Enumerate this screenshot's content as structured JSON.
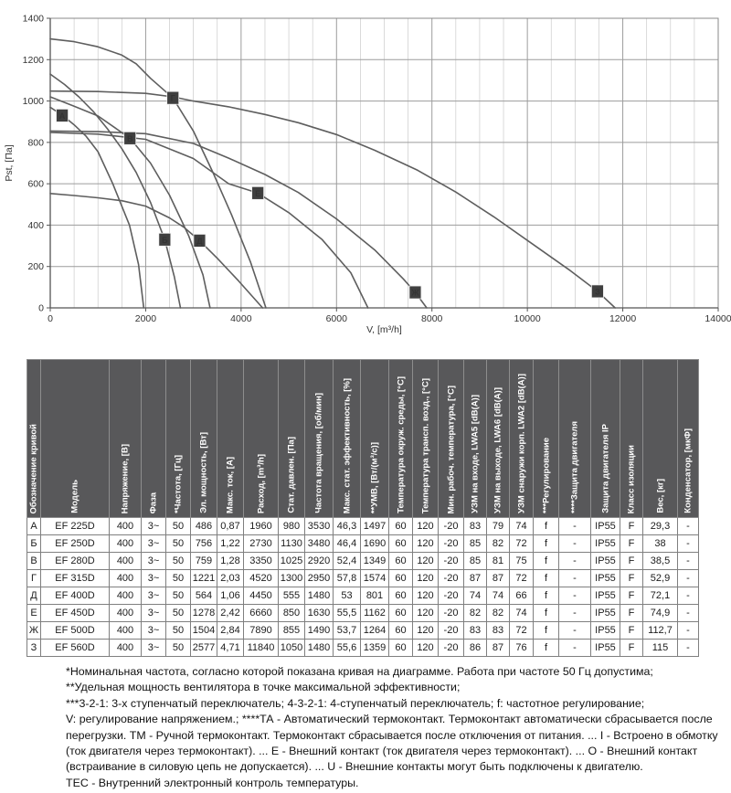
{
  "chart_data": {
    "type": "line",
    "title": "",
    "xlabel": "V, [m³/h]",
    "ylabel": "Pst, [Па]",
    "xlim": [
      0,
      14000
    ],
    "ylim": [
      0,
      1400
    ],
    "x_ticks": [
      0,
      2000,
      4000,
      6000,
      8000,
      10000,
      12000,
      14000
    ],
    "y_ticks": [
      0,
      200,
      400,
      600,
      800,
      1000,
      1200,
      1400
    ],
    "x_minor_step": 500,
    "grid": true,
    "legend_position": "markers-on-curves",
    "series": [
      {
        "name": "А",
        "model": "EF 225D",
        "marker_at": [
          250,
          930
        ],
        "points": [
          [
            0,
            970
          ],
          [
            250,
            932
          ],
          [
            500,
            885
          ],
          [
            750,
            830
          ],
          [
            1000,
            755
          ],
          [
            1310,
            600
          ],
          [
            1660,
            400
          ],
          [
            1850,
            210
          ],
          [
            1960,
            0
          ]
        ]
      },
      {
        "name": "Б",
        "model": "EF 250D",
        "marker_at": [
          2400,
          330
        ],
        "points": [
          [
            0,
            1130
          ],
          [
            300,
            1080
          ],
          [
            600,
            1020
          ],
          [
            900,
            950
          ],
          [
            1200,
            865
          ],
          [
            1500,
            770
          ],
          [
            1800,
            655
          ],
          [
            2100,
            510
          ],
          [
            2400,
            330
          ],
          [
            2600,
            150
          ],
          [
            2730,
            0
          ]
        ]
      },
      {
        "name": "В",
        "model": "EF 280D",
        "marker_at": [
          1670,
          820
        ],
        "points": [
          [
            0,
            1020
          ],
          [
            500,
            975
          ],
          [
            1000,
            928
          ],
          [
            1670,
            820
          ],
          [
            2100,
            700
          ],
          [
            2500,
            545
          ],
          [
            2900,
            350
          ],
          [
            3200,
            160
          ],
          [
            3350,
            0
          ]
        ]
      },
      {
        "name": "Г",
        "model": "EF 315D",
        "marker_at": [
          2570,
          1015
        ],
        "points": [
          [
            0,
            1300
          ],
          [
            500,
            1287
          ],
          [
            1000,
            1262
          ],
          [
            1500,
            1222
          ],
          [
            1800,
            1180
          ],
          [
            2100,
            1110
          ],
          [
            2570,
            1015
          ],
          [
            3000,
            855
          ],
          [
            3400,
            660
          ],
          [
            3800,
            450
          ],
          [
            4200,
            220
          ],
          [
            4520,
            0
          ]
        ]
      },
      {
        "name": "Д",
        "model": "EF 400D",
        "marker_at": [
          3130,
          325
        ],
        "points": [
          [
            0,
            553
          ],
          [
            500,
            543
          ],
          [
            1000,
            532
          ],
          [
            1500,
            518
          ],
          [
            2000,
            492
          ],
          [
            2500,
            435
          ],
          [
            2800,
            390
          ],
          [
            3130,
            325
          ],
          [
            3500,
            240
          ],
          [
            3950,
            130
          ],
          [
            4450,
            0
          ]
        ]
      },
      {
        "name": "Е",
        "model": "EF 450D",
        "marker_at": [
          4350,
          555
        ],
        "points": [
          [
            0,
            848
          ],
          [
            1000,
            840
          ],
          [
            2000,
            815
          ],
          [
            3000,
            722
          ],
          [
            3740,
            600
          ],
          [
            4350,
            555
          ],
          [
            5000,
            460
          ],
          [
            5700,
            330
          ],
          [
            6300,
            170
          ],
          [
            6660,
            0
          ]
        ]
      },
      {
        "name": "Ж",
        "model": "EF 500D",
        "marker_at": [
          7650,
          75
        ],
        "points": [
          [
            0,
            855
          ],
          [
            1000,
            852
          ],
          [
            2000,
            842
          ],
          [
            3000,
            795
          ],
          [
            3740,
            724
          ],
          [
            4500,
            645
          ],
          [
            5200,
            558
          ],
          [
            6000,
            430
          ],
          [
            6800,
            280
          ],
          [
            7400,
            140
          ],
          [
            7650,
            75
          ],
          [
            7890,
            0
          ]
        ]
      },
      {
        "name": "З",
        "model": "EF 560D",
        "marker_at": [
          11470,
          80
        ],
        "points": [
          [
            0,
            1048
          ],
          [
            1000,
            1046
          ],
          [
            2000,
            1037
          ],
          [
            2570,
            1020
          ],
          [
            3000,
            1000
          ],
          [
            3740,
            972
          ],
          [
            4500,
            935
          ],
          [
            5200,
            895
          ],
          [
            6000,
            838
          ],
          [
            6800,
            762
          ],
          [
            7700,
            665
          ],
          [
            8500,
            560
          ],
          [
            9300,
            440
          ],
          [
            10100,
            310
          ],
          [
            10900,
            180
          ],
          [
            11470,
            80
          ],
          [
            11840,
            0
          ]
        ]
      }
    ],
    "colors": {
      "curve": "#5e5e5e",
      "marker_bg": "#3f3f3f",
      "marker_text": "#ffffff",
      "grid_minor": "#cbcbcb",
      "grid_major": "#9c9c9c",
      "frame": "#888888",
      "axis": "#555555"
    }
  },
  "table": {
    "columns": [
      "Обозначение кривой",
      "Модель",
      "Напряжение, [В]",
      "Фаза",
      "*Частота, [Гц]",
      "Эл. мощность, [Вт]",
      "Макс. ток, [А]",
      "Расход, [m³/h]",
      "Стат. давлен. [Па]",
      "Частота вращения, [об/мин]",
      "Макс. стат. эффективность, [%]",
      "**УМВ, [Вт/(м³/с)]",
      "Температура окруж. среды, [°C]",
      "Температура трансп. возд., [°C]",
      "Мин. рабоч. температура, [°C]",
      "УЗМ на входе, LWA5 [dB(A)]",
      "УЗМ на выходе, LWA6 [dB(A)]",
      "УЗМ снаружи корп. LWA2 [dB(A)]",
      "***Регулирование",
      "****Защита двигателя",
      "Защита двигателя IP",
      "Класс изоляции",
      "Вес, [кг]",
      "Конденсатор, [мкФ]"
    ],
    "rows": [
      [
        "А",
        "EF 225D",
        "400",
        "3~",
        "50",
        "486",
        "0,87",
        "1960",
        "980",
        "3530",
        "46,3",
        "1497",
        "60",
        "120",
        "-20",
        "83",
        "79",
        "74",
        "f",
        "-",
        "IP55",
        "F",
        "29,3",
        "-"
      ],
      [
        "Б",
        "EF 250D",
        "400",
        "3~",
        "50",
        "756",
        "1,22",
        "2730",
        "1130",
        "3480",
        "46,4",
        "1690",
        "60",
        "120",
        "-20",
        "85",
        "82",
        "72",
        "f",
        "-",
        "IP55",
        "F",
        "38",
        "-"
      ],
      [
        "В",
        "EF 280D",
        "400",
        "3~",
        "50",
        "759",
        "1,28",
        "3350",
        "1025",
        "2920",
        "52,4",
        "1349",
        "60",
        "120",
        "-20",
        "85",
        "81",
        "75",
        "f",
        "-",
        "IP55",
        "F",
        "38,5",
        "-"
      ],
      [
        "Г",
        "EF 315D",
        "400",
        "3~",
        "50",
        "1221",
        "2,03",
        "4520",
        "1300",
        "2950",
        "57,8",
        "1574",
        "60",
        "120",
        "-20",
        "87",
        "87",
        "72",
        "f",
        "-",
        "IP55",
        "F",
        "52,9",
        "-"
      ],
      [
        "Д",
        "EF 400D",
        "400",
        "3~",
        "50",
        "564",
        "1,06",
        "4450",
        "555",
        "1480",
        "53",
        "801",
        "60",
        "120",
        "-20",
        "74",
        "74",
        "66",
        "f",
        "-",
        "IP55",
        "F",
        "72,1",
        "-"
      ],
      [
        "Е",
        "EF 450D",
        "400",
        "3~",
        "50",
        "1278",
        "2,42",
        "6660",
        "850",
        "1630",
        "55,5",
        "1162",
        "60",
        "120",
        "-20",
        "82",
        "82",
        "74",
        "f",
        "-",
        "IP55",
        "F",
        "74,9",
        "-"
      ],
      [
        "Ж",
        "EF 500D",
        "400",
        "3~",
        "50",
        "1504",
        "2,84",
        "7890",
        "855",
        "1490",
        "53,7",
        "1264",
        "60",
        "120",
        "-20",
        "83",
        "83",
        "72",
        "f",
        "-",
        "IP55",
        "F",
        "112,7",
        "-"
      ],
      [
        "З",
        "EF 560D",
        "400",
        "3~",
        "50",
        "2577",
        "4,71",
        "11840",
        "1050",
        "1480",
        "55,6",
        "1359",
        "60",
        "120",
        "-20",
        "86",
        "87",
        "76",
        "f",
        "-",
        "IP55",
        "F",
        "115",
        "-"
      ]
    ]
  },
  "footnotes": {
    "lines": [
      "*Номинальная частота, согласно которой показана кривая на диаграмме. Работа при частоте 50 Гц допустима;",
      "**Удельная мощность вентилятора в точке максимальной эффективности;",
      "***3-2-1: 3-х ступенчатый переключатель; 4-3-2-1: 4-ступенчатый переключатель; f: частотное регулирование;",
      "V: регулирование напряжением.; ****ТА - Автоматический термоконтакт. Термоконтакт автоматически сбрасывается после",
      "перегрузки. ТМ - Ручной термоконтакт. Термоконтакт сбрасывается после отключения от питания. ... I - Встроено в обмотку",
      "(ток двигателя через термоконтакт). ... Е - Внешний контакт (ток двигателя через термоконтакт). ... О - Внешний контакт",
      "(встраивание в силовую цепь не допускается). ... U - Внешние контакты могут быть подключены к двигателю.",
      "ТЕС - Внутренний электронный контроль температуры."
    ]
  }
}
